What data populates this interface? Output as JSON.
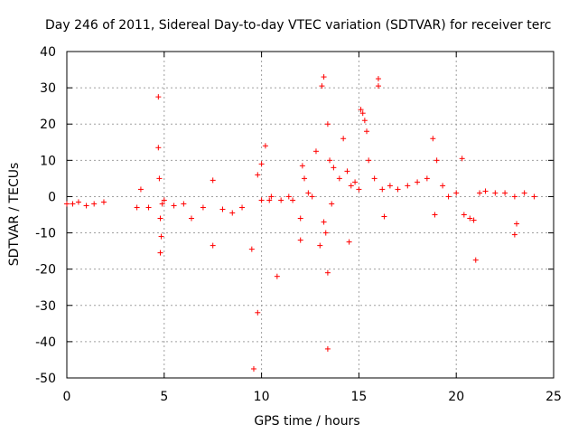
{
  "chart_data": {
    "type": "scatter",
    "title": "Day 246 of 2011, Sidereal Day-to-day VTEC variation (SDTVAR) for receiver terc",
    "xlabel": "GPS time / hours",
    "ylabel": "SDTVAR / TECUs",
    "xlim": [
      0,
      25
    ],
    "ylim": [
      -50,
      40
    ],
    "xticks": [
      0,
      5,
      10,
      15,
      20,
      25
    ],
    "yticks": [
      -50,
      -40,
      -30,
      -20,
      -10,
      0,
      10,
      20,
      30,
      40
    ],
    "grid": true,
    "marker": "+",
    "color": "#ff0000",
    "series": [
      {
        "name": "SDTVAR",
        "x": [
          0.0,
          0.3,
          0.6,
          1.0,
          1.4,
          1.9,
          3.6,
          3.8,
          4.2,
          4.7,
          4.7,
          4.75,
          4.8,
          4.8,
          4.85,
          4.9,
          5.0,
          5.5,
          6.0,
          6.4,
          7.0,
          7.5,
          7.5,
          8.0,
          8.5,
          9.0,
          9.5,
          9.6,
          9.8,
          9.8,
          10.0,
          10.0,
          10.2,
          10.4,
          10.5,
          10.8,
          11.0,
          11.4,
          11.6,
          12.0,
          12.0,
          12.1,
          12.2,
          12.4,
          12.6,
          12.8,
          13.0,
          13.1,
          13.2,
          13.2,
          13.3,
          13.4,
          13.4,
          13.4,
          13.5,
          13.6,
          13.7,
          14.0,
          14.2,
          14.4,
          14.5,
          14.6,
          14.8,
          15.0,
          15.1,
          15.2,
          15.3,
          15.4,
          15.5,
          15.8,
          16.0,
          16.0,
          16.2,
          16.3,
          16.6,
          17.0,
          17.5,
          18.0,
          18.5,
          18.8,
          18.9,
          19.0,
          19.3,
          19.6,
          20.0,
          20.3,
          20.4,
          20.7,
          20.9,
          21.0,
          21.2,
          21.5,
          22.0,
          22.5,
          23.0,
          23.0,
          23.1,
          23.5,
          24.0
        ],
        "y": [
          -2,
          -2,
          -1.5,
          -2.5,
          -2,
          -1.5,
          -3,
          2,
          -3,
          27.5,
          13.5,
          5,
          -6,
          -15.5,
          -11,
          -2,
          -1,
          -2.5,
          -2,
          -6,
          -3,
          -13.5,
          4.5,
          -3.5,
          -4.5,
          -3,
          -14.5,
          -47.5,
          -32,
          6,
          -1,
          9,
          14,
          -1,
          0,
          -22,
          -1,
          0,
          -1,
          -6,
          -12,
          8.5,
          5,
          1,
          0,
          12.5,
          -13.5,
          30.5,
          33,
          -7,
          -10,
          -42,
          -21,
          20,
          10,
          -2,
          8,
          5,
          16,
          7,
          -12.5,
          3,
          4,
          2,
          24,
          23,
          21,
          18,
          10,
          5,
          32.5,
          30.5,
          2,
          -5.5,
          3,
          2,
          3,
          4,
          5,
          16,
          -5,
          10,
          3,
          0,
          1,
          10.5,
          -5,
          -6,
          -6.5,
          -17.5,
          1,
          1.5,
          1,
          1,
          0,
          -10.5,
          -7.5,
          1,
          0
        ]
      }
    ]
  }
}
